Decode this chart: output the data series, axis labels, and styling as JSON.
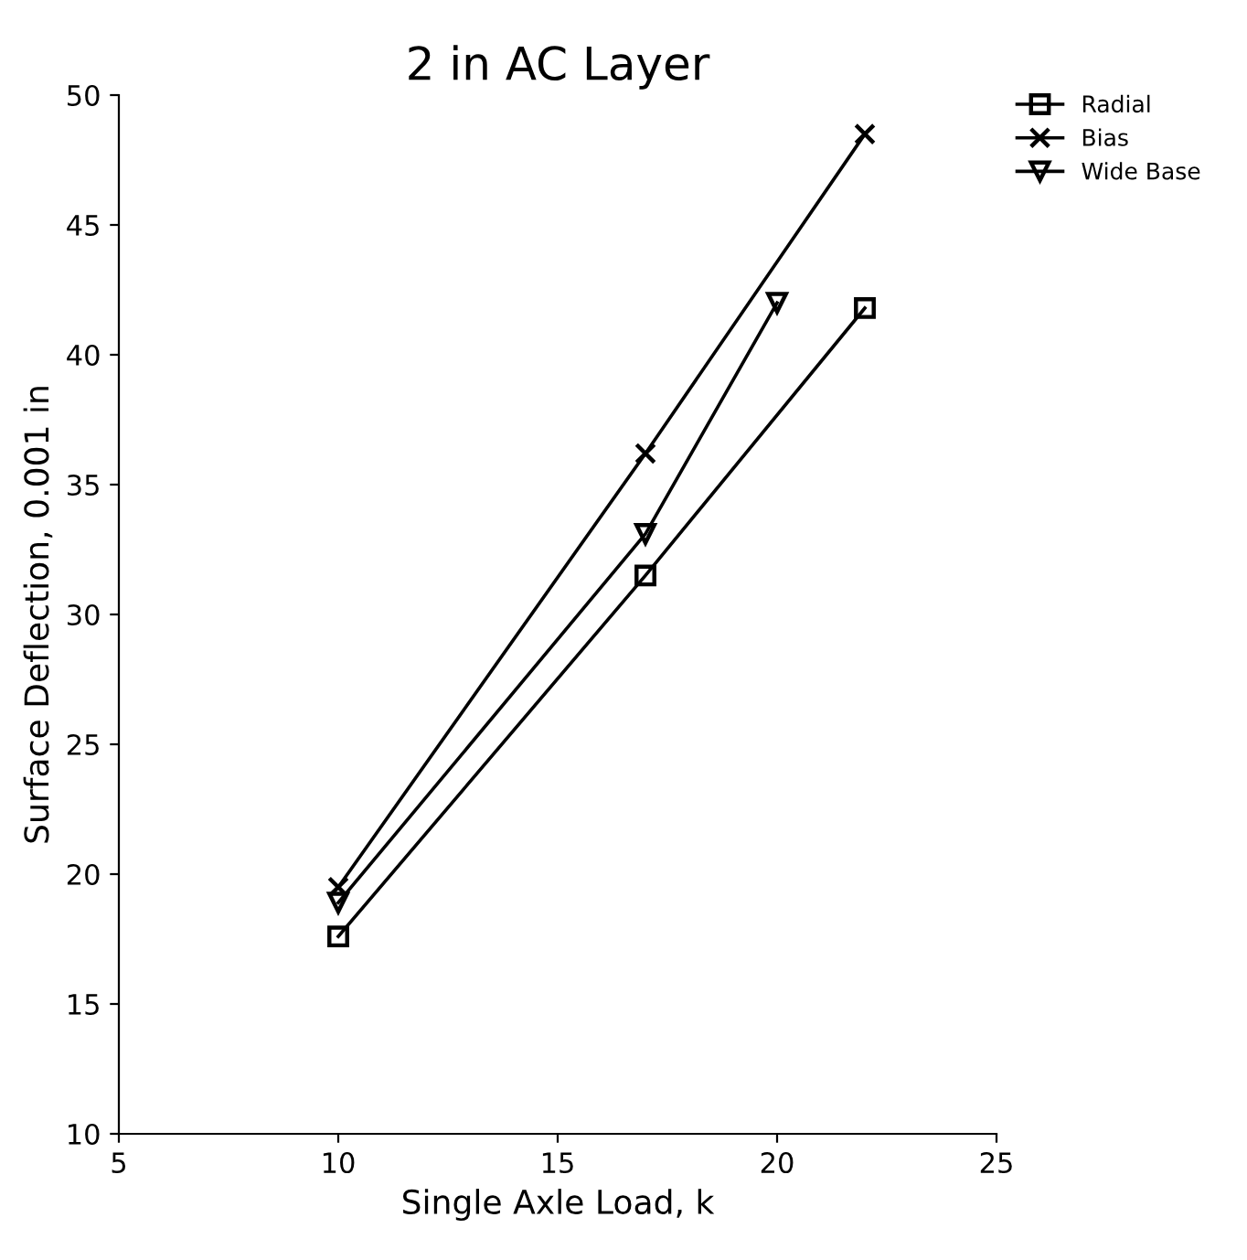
{
  "chart_data": {
    "type": "line",
    "title": "2 in AC Layer",
    "xlabel": "Single Axle Load, k",
    "ylabel": "Surface Deflection, 0.001 in",
    "x": [
      10,
      17,
      22
    ],
    "series": [
      {
        "name": "Radial",
        "color": "#000000",
        "marker": "square",
        "values": [
          17.6,
          31.5,
          41.8
        ]
      },
      {
        "name": "Bias",
        "color": "#000000",
        "marker": "cross",
        "values": [
          19.5,
          36.2,
          48.5
        ]
      },
      {
        "name": "Wide Base",
        "color": "#000000",
        "marker": "triangle",
        "x": [
          10,
          17,
          20
        ],
        "values": [
          18.9,
          33.1,
          42.0
        ]
      }
    ],
    "xlim": [
      5,
      25
    ],
    "xticks": [
      5,
      10,
      15,
      20,
      25
    ],
    "ylim": [
      10,
      50
    ],
    "yticks": [
      10,
      15,
      20,
      25,
      30,
      35,
      40,
      45,
      50
    ],
    "grid": false,
    "legend": "top right",
    "line_style": "solid"
  }
}
